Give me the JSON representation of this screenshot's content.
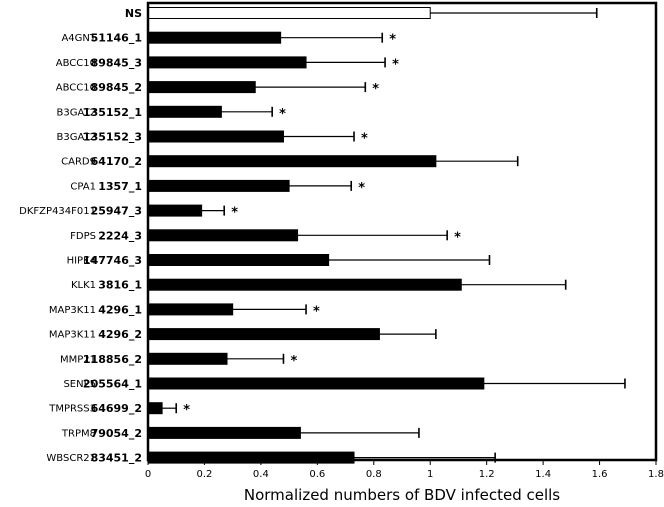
{
  "chart_data": {
    "type": "bar",
    "orientation": "horizontal",
    "xlabel": "Normalized numbers of BDV infected cells",
    "xlim": [
      0,
      1.8
    ],
    "xticks": [
      "0",
      "0.2",
      "0.4",
      "0.6",
      "0.8",
      "1",
      "1.2",
      "1.4",
      "1.6",
      "1.8"
    ],
    "grid": false,
    "colors": {
      "bar": "#000000",
      "control_bar": "#ffffff"
    },
    "rows": [
      {
        "gene": "",
        "id": "NS",
        "value": 1.0,
        "error": 0.59,
        "sig": ""
      },
      {
        "gene": "A4GNT",
        "id": "51146_1",
        "value": 0.47,
        "error": 0.36,
        "sig": "*"
      },
      {
        "gene": "ABCC10",
        "id": "89845_3",
        "value": 0.56,
        "error": 0.28,
        "sig": "*"
      },
      {
        "gene": "ABCC10",
        "id": "89845_2",
        "value": 0.38,
        "error": 0.39,
        "sig": "*"
      },
      {
        "gene": "B3GAT2",
        "id": "135152_1",
        "value": 0.26,
        "error": 0.18,
        "sig": "*"
      },
      {
        "gene": "B3GAT2",
        "id": "135152_3",
        "value": 0.48,
        "error": 0.25,
        "sig": "*"
      },
      {
        "gene": "CARD9",
        "id": "64170_2",
        "value": 1.02,
        "error": 0.29,
        "sig": ""
      },
      {
        "gene": "CPA1",
        "id": "1357_1",
        "value": 0.5,
        "error": 0.22,
        "sig": "*"
      },
      {
        "gene": "DKFZP434F011",
        "id": "25947_3",
        "value": 0.19,
        "error": 0.08,
        "sig": "*"
      },
      {
        "gene": "FDPS",
        "id": "2224_3",
        "value": 0.53,
        "error": 0.53,
        "sig": "*"
      },
      {
        "gene": "HIPK4",
        "id": "147746_3",
        "value": 0.64,
        "error": 0.57,
        "sig": ""
      },
      {
        "gene": "KLK1",
        "id": "3816_1",
        "value": 1.11,
        "error": 0.37,
        "sig": ""
      },
      {
        "gene": "MAP3K11",
        "id": "4296_1",
        "value": 0.3,
        "error": 0.26,
        "sig": "*"
      },
      {
        "gene": "MAP3K11",
        "id": "4296_2",
        "value": 0.82,
        "error": 0.2,
        "sig": ""
      },
      {
        "gene": "MMP21",
        "id": "118856_2",
        "value": 0.28,
        "error": 0.2,
        "sig": "*"
      },
      {
        "gene": "SENP5",
        "id": "205564_1",
        "value": 1.19,
        "error": 0.5,
        "sig": ""
      },
      {
        "gene": "TMPRSS3",
        "id": "64699_2",
        "value": 0.05,
        "error": 0.05,
        "sig": "*"
      },
      {
        "gene": "TRPM8",
        "id": "79054_2",
        "value": 0.54,
        "error": 0.42,
        "sig": ""
      },
      {
        "gene": "WBSCR21",
        "id": "83451_2",
        "value": 0.73,
        "error": 0.5,
        "sig": ""
      }
    ]
  }
}
